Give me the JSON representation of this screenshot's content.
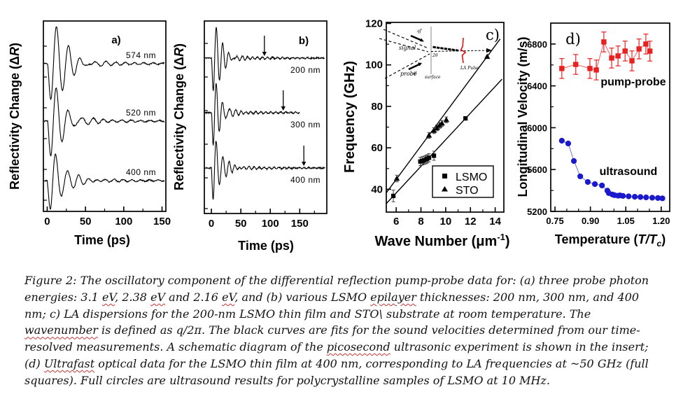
{
  "page": {
    "background": "#ffffff"
  },
  "caption": {
    "lines": [
      [
        {
          "t": "Figure 2: The oscillatory component of the differential reflection pump-probe data for: (a) three probe photon"
        }
      ],
      [
        {
          "t": "energies: 3.1 "
        },
        {
          "t": "eV",
          "sq": true
        },
        {
          "t": ", 2.38 "
        },
        {
          "t": "eV",
          "sq": true
        },
        {
          "t": " and 2.16 "
        },
        {
          "t": "eV",
          "sq": true
        },
        {
          "t": ", and (b) various LSMO "
        },
        {
          "t": "epilayer",
          "sq": true
        },
        {
          "t": " thicknesses: 200 nm, 300 nm, and 400"
        }
      ],
      [
        {
          "t": "nm; c) LA dispersions for the 200-nm LSMO thin film and STO\\ substrate at room temperature. The"
        }
      ],
      [
        {
          "t": "wavenumber",
          "sq": true
        },
        {
          "t": " is defined as q/2π. The black curves are fits for the sound velocities determined from our time-"
        }
      ],
      [
        {
          "t": "resolved measurements. A schematic diagram of the "
        },
        {
          "t": "picosecond",
          "sq": true
        },
        {
          "t": " ultrasonic experiment is shown in the insert;"
        }
      ],
      [
        {
          "t": "(d) "
        },
        {
          "t": "Ultrafast",
          "sq": true
        },
        {
          "t": " optical data for the LSMO thin film at 400 nm, corresponding to LA frequencies at ~50 GHz (full"
        }
      ],
      [
        {
          "t": "squares). Full circles are ultrasound results for polycrystalline samples of LSMO at 10 MHz."
        }
      ]
    ]
  },
  "chart_data": [
    {
      "id": "a",
      "type": "line",
      "panel_label": "a)",
      "xlabel": "Time (ps)",
      "ylabel_parts": [
        "Reflectivity Change (Δ",
        "R",
        ")"
      ],
      "xlim": [
        -5,
        155
      ],
      "xticks": [
        0,
        50,
        100,
        150
      ],
      "traces": [
        {
          "label": "574 nm",
          "period_ps": 16,
          "rise_ps": 5,
          "decay_ps": 16
        },
        {
          "label": "520 nm",
          "period_ps": 16,
          "rise_ps": 5,
          "decay_ps": 15
        },
        {
          "label": "400 nm",
          "period_ps": 15,
          "rise_ps": 5,
          "decay_ps": 14
        }
      ],
      "description": "Damped acoustic oscillations of reflectivity vs delay time for three probe wavelengths"
    },
    {
      "id": "b",
      "type": "line",
      "panel_label": "b)",
      "xlabel": "Time (ps)",
      "ylabel_parts": [
        "Reflectivity Change (Δ",
        "R",
        ")"
      ],
      "xlim": [
        -12,
        196
      ],
      "xticks": [
        0,
        50,
        100,
        150
      ],
      "traces": [
        {
          "label": "200 nm",
          "period_ps": 11,
          "rise_ps": 2.5,
          "decay_ps": 12,
          "end_ps": 192
        },
        {
          "label": "300 nm",
          "period_ps": 11,
          "rise_ps": 2.5,
          "decay_ps": 12,
          "end_ps": 150
        },
        {
          "label": "400 nm",
          "period_ps": 11,
          "rise_ps": 2.5,
          "decay_ps": 12,
          "end_ps": 193
        }
      ],
      "arrows_ps": [
        90,
        122,
        157
      ],
      "description": "Damped acoustic oscillations for LSMO epilayer thicknesses; arrows mark echo times"
    },
    {
      "id": "c",
      "type": "scatter",
      "panel_label": "c)",
      "xlabel_parts": [
        "Wave Number (μm",
        "-1",
        ")"
      ],
      "ylabel": "Frequency (GHz)",
      "xlim": [
        5.2,
        14.7
      ],
      "ylim": [
        29,
        120.5
      ],
      "xticks": [
        6,
        8,
        10,
        12,
        14
      ],
      "yticks": [
        40,
        60,
        80,
        100,
        120
      ],
      "legend": [
        "LSMO",
        "STO"
      ],
      "series": [
        {
          "name": "LSMO",
          "marker": "square",
          "x": [
            5.77,
            7.95,
            8.1,
            8.25,
            8.4,
            8.5,
            8.65,
            9.05,
            11.6
          ],
          "y": [
            36.8,
            53.4,
            53.7,
            54.0,
            54.3,
            54.7,
            55.2,
            56.2,
            74.2
          ],
          "yerr": [
            2.8,
            2,
            2,
            2,
            2,
            2,
            2,
            2.2,
            0
          ]
        },
        {
          "name": "STO",
          "marker": "triangle",
          "x": [
            6.05,
            8.65,
            9.05,
            9.3,
            9.5,
            9.7,
            10.05,
            13.35
          ],
          "y": [
            45.2,
            66.0,
            68.3,
            69.6,
            70.8,
            71.8,
            73.5,
            104.0
          ],
          "yerr": [
            1.6,
            1.4,
            1.4,
            1.4,
            1.4,
            1.4,
            1.4,
            0
          ]
        }
      ],
      "fits": [
        {
          "x1": 5.2,
          "y1": 33.1,
          "x2": 14.55,
          "y2": 93.1
        },
        {
          "x1": 5.2,
          "y1": 38.3,
          "x2": 14.4,
          "y2": 112.5
        }
      ],
      "inset": {
        "signal": "signal",
        "probe": "probe",
        "qf": "qf",
        "qi": "qi",
        "surface": "surface",
        "angle": "2θ",
        "pulse": "LA Pulse"
      }
    },
    {
      "id": "d",
      "type": "scatter",
      "panel_label": "d)",
      "xlabel_parts": [
        "Temperature (",
        "T/T",
        "c",
        ")"
      ],
      "ylabel": "Longitudinal Velocity (m/s)",
      "xlim": [
        0.732,
        1.236
      ],
      "ylim": [
        5200,
        7000
      ],
      "xticks": [
        "0.75",
        "0.90",
        "1.05",
        "1.20"
      ],
      "yticks": [
        5200,
        5600,
        6000,
        6400,
        6800
      ],
      "series": [
        {
          "name": "pump-probe",
          "marker": "square",
          "color": "#e82020",
          "x": [
            0.779,
            0.838,
            0.898,
            0.925,
            0.957,
            0.99,
            1.017,
            1.047,
            1.076,
            1.106,
            1.135,
            1.152
          ],
          "y": [
            6566,
            6605,
            6566,
            6552,
            6820,
            6666,
            6686,
            6733,
            6639,
            6753,
            6800,
            6732
          ],
          "yerr": 95
        },
        {
          "name": "ultrasound",
          "marker": "circle",
          "color": "#1a1acc",
          "x": [
            0.779,
            0.806,
            0.83,
            0.857,
            0.889,
            0.919,
            0.949,
            0.972,
            0.978,
            0.993,
            1.002,
            1.017,
            1.026,
            1.038,
            1.062,
            1.088,
            1.112,
            1.136,
            1.162,
            1.186,
            1.205
          ],
          "y": [
            5876,
            5849,
            5682,
            5535,
            5481,
            5461,
            5448,
            5398,
            5375,
            5362,
            5355,
            5350,
            5353,
            5348,
            5344,
            5340,
            5337,
            5334,
            5331,
            5328,
            5325
          ]
        }
      ]
    }
  ]
}
